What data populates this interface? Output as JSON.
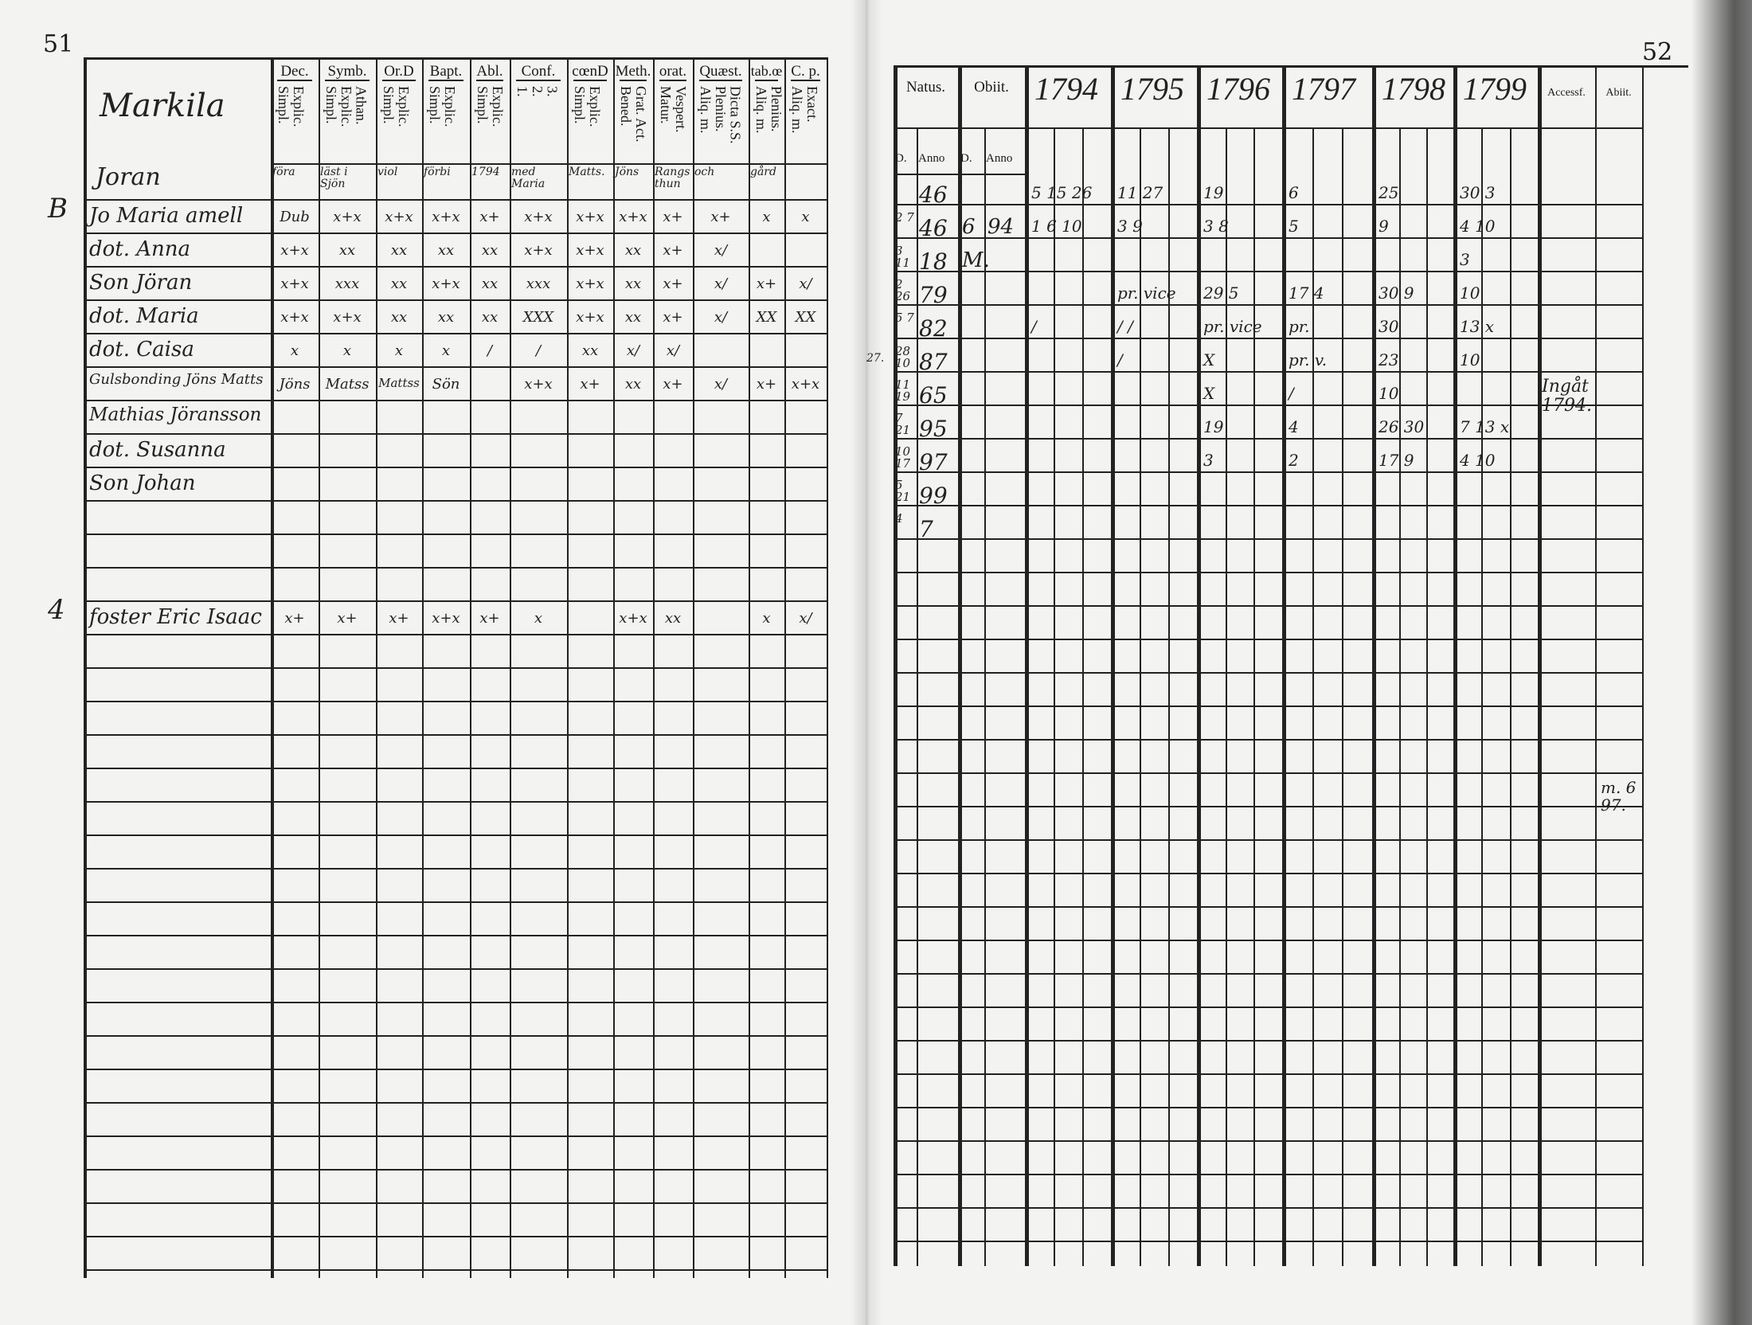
{
  "page_left": {
    "number": "51",
    "headers": [
      {
        "top": "Dec.",
        "sub": "Explic.\nSimpl."
      },
      {
        "top": "Symb.",
        "sub": "Athan.\nExplic.\nSimpl."
      },
      {
        "top": "Or.D",
        "sub": "Explic.\nSimpl."
      },
      {
        "top": "Bapt.",
        "sub": "Explic.\nSimpl."
      },
      {
        "top": "Abl.",
        "sub": "Explic.\nSimpl."
      },
      {
        "top": "Conf.",
        "sub": "3.\n2.\n1."
      },
      {
        "top": "cœnD",
        "sub": "Explic.\nSimpl."
      },
      {
        "top": "Meth.",
        "sub": "Grat. Act.\nBened."
      },
      {
        "top": "orat.",
        "sub": "Vespert.\nMatur."
      },
      {
        "top": "Quæst.",
        "sub": "Dicta S.S.\nPlenius.\nAliq. m."
      },
      {
        "top": "tab.œ",
        "sub": "Plenius.\nAliq. m."
      },
      {
        "top": "C. p.",
        "sub": "Exact.\nAliq. m."
      }
    ],
    "village": "Markila",
    "farm": "Joran",
    "header_row_marks": [
      "föra",
      "läst i Sjön",
      "viol",
      "förbi",
      "1794",
      "med Maria",
      "Matts.",
      "Jöns",
      "Rangsthun",
      "och",
      "gård"
    ],
    "rows": [
      {
        "prefix": "B",
        "name": "Jo Maria amell",
        "marks": [
          "Dub",
          "x+x",
          "x+x",
          "x+x",
          "x+",
          "x+x",
          "x+x",
          "x+x",
          "x+",
          "x+",
          "x",
          "x"
        ]
      },
      {
        "name": "dot. Anna",
        "marks": [
          "x+x",
          "xx",
          "xx",
          "xx",
          "xx",
          "x+x",
          "x+x",
          "xx",
          "x+",
          "x/",
          "",
          ""
        ]
      },
      {
        "name": "Son Jöran",
        "marks": [
          "x+x",
          "xxx",
          "xx",
          "x+x",
          "xx",
          "xxx",
          "x+x",
          "xx",
          "x+",
          "x/",
          "x+",
          "x/"
        ]
      },
      {
        "name": "dot. Maria",
        "marks": [
          "x+x",
          "x+x",
          "xx",
          "xx",
          "xx",
          "XXX",
          "x+x",
          "xx",
          "x+",
          "x/",
          "XX",
          "XX"
        ]
      },
      {
        "name": "dot. Caisa",
        "marks": [
          "x",
          "x",
          "x",
          "x",
          "/",
          "/",
          "xx",
          "x/",
          "x/",
          "",
          "",
          ""
        ]
      },
      {
        "name": "Gulsbonding Jöns Matts",
        "marks": [
          "Jöns",
          "Matss",
          "Mattss",
          "Sön",
          "",
          "x+x",
          "x+",
          "xx",
          "x+",
          "x/",
          "x+",
          "x+x"
        ]
      },
      {
        "name": "Mathias Jöransson",
        "marks": [
          "",
          "",
          "",
          "",
          "",
          "",
          "",
          "",
          "",
          "",
          "",
          ""
        ]
      },
      {
        "name": "dot. Susanna",
        "marks": [
          "",
          "",
          "",
          "",
          "",
          "",
          "",
          "",
          "",
          "",
          "",
          ""
        ]
      },
      {
        "name": "Son Johan",
        "marks": [
          "",
          "",
          "",
          "",
          "",
          "",
          "",
          "",
          "",
          "",
          "",
          ""
        ]
      }
    ],
    "late_row": {
      "prefix": "4",
      "name": "foster Eric Isaac",
      "marks": [
        "x+",
        "x+",
        "x+",
        "x+x",
        "x+",
        "x",
        "",
        "x+x",
        "xx",
        "",
        "x",
        "x/"
      ]
    }
  },
  "page_right": {
    "number": "52",
    "headers": {
      "natus": "Natus.",
      "obiit": "Obiit.",
      "years": [
        "1794",
        "1795",
        "1796",
        "1797",
        "1798",
        "1799"
      ],
      "accessit": "Accessf.",
      "abiit": "Abiit.",
      "sub_d": "D.",
      "sub_anno": "Anno"
    },
    "margin_note": "27.",
    "rows": [
      {
        "natus_d": "",
        "natus_anno": "46",
        "obiit_d": "",
        "obiit_anno": "",
        "y1794": "5 15 26",
        "y1795": "11 27",
        "y1796": "19",
        "y1797": "6",
        "y1798": "25",
        "y1799": "30 3"
      },
      {
        "natus_d": "2 7",
        "natus_anno": "46",
        "obiit_d": "6",
        "obiit_anno": "94",
        "y1794": "1 6 10",
        "y1795": "3 9",
        "y1796": "3 8",
        "y1797": "5",
        "y1798": "9",
        "y1799": "4 10"
      },
      {
        "natus_d": "3 11",
        "natus_anno": "18",
        "obiit_d": "M.",
        "obiit_anno": "",
        "y1794": "",
        "y1795": "",
        "y1796": "",
        "y1797": "",
        "y1798": "",
        "y1799": "3"
      },
      {
        "natus_d": "2 26",
        "natus_anno": "79",
        "obiit_d": "",
        "obiit_anno": "",
        "y1794": "",
        "y1795": "pr. vice",
        "y1796": "29 5",
        "y1797": "17 4",
        "y1798": "30 9",
        "y1799": "10"
      },
      {
        "natus_d": "5 7",
        "natus_anno": "82",
        "obiit_d": "",
        "obiit_anno": "",
        "y1794": "/",
        "y1795": "/ /",
        "y1796": "pr. vice",
        "y1797": "pr.",
        "y1798": "30",
        "y1799": "13 x"
      },
      {
        "natus_d": "28 10",
        "natus_anno": "87",
        "obiit_d": "",
        "obiit_anno": "",
        "y1794": "",
        "y1795": "/",
        "y1796": "X",
        "y1797": "pr. v.",
        "y1798": "23",
        "y1799": "10"
      },
      {
        "natus_d": "11 19",
        "natus_anno": "65",
        "obiit_d": "",
        "obiit_anno": "",
        "y1794": "",
        "y1795": "",
        "y1796": "X",
        "y1797": "/",
        "y1798": "10",
        "y1799": ""
      },
      {
        "natus_d": "7 21",
        "natus_anno": "95",
        "obiit_d": "",
        "obiit_anno": "",
        "y1794": "",
        "y1795": "",
        "y1796": "19",
        "y1797": "4",
        "y1798": "26 30",
        "y1799": "7 13 x"
      },
      {
        "natus_d": "10 17",
        "natus_anno": "97",
        "obiit_d": "",
        "obiit_anno": "",
        "y1794": "",
        "y1795": "",
        "y1796": "3",
        "y1797": "2",
        "y1798": "17 9",
        "y1799": "4 10"
      },
      {
        "natus_d": "5 21",
        "natus_anno": "99",
        "obiit_d": "",
        "obiit_anno": "",
        "y1794": "",
        "y1795": "",
        "y1796": "",
        "y1797": "",
        "y1798": "",
        "y1799": ""
      },
      {
        "natus_d": "4",
        "natus_anno": "7",
        "obiit_d": "",
        "obiit_anno": "",
        "y1794": "",
        "y1795": "",
        "y1796": "",
        "y1797": "",
        "y1798": "",
        "y1799": ""
      }
    ],
    "accessit_note": "Ingåt 1794.",
    "abiit_note": "m. 6 97."
  }
}
